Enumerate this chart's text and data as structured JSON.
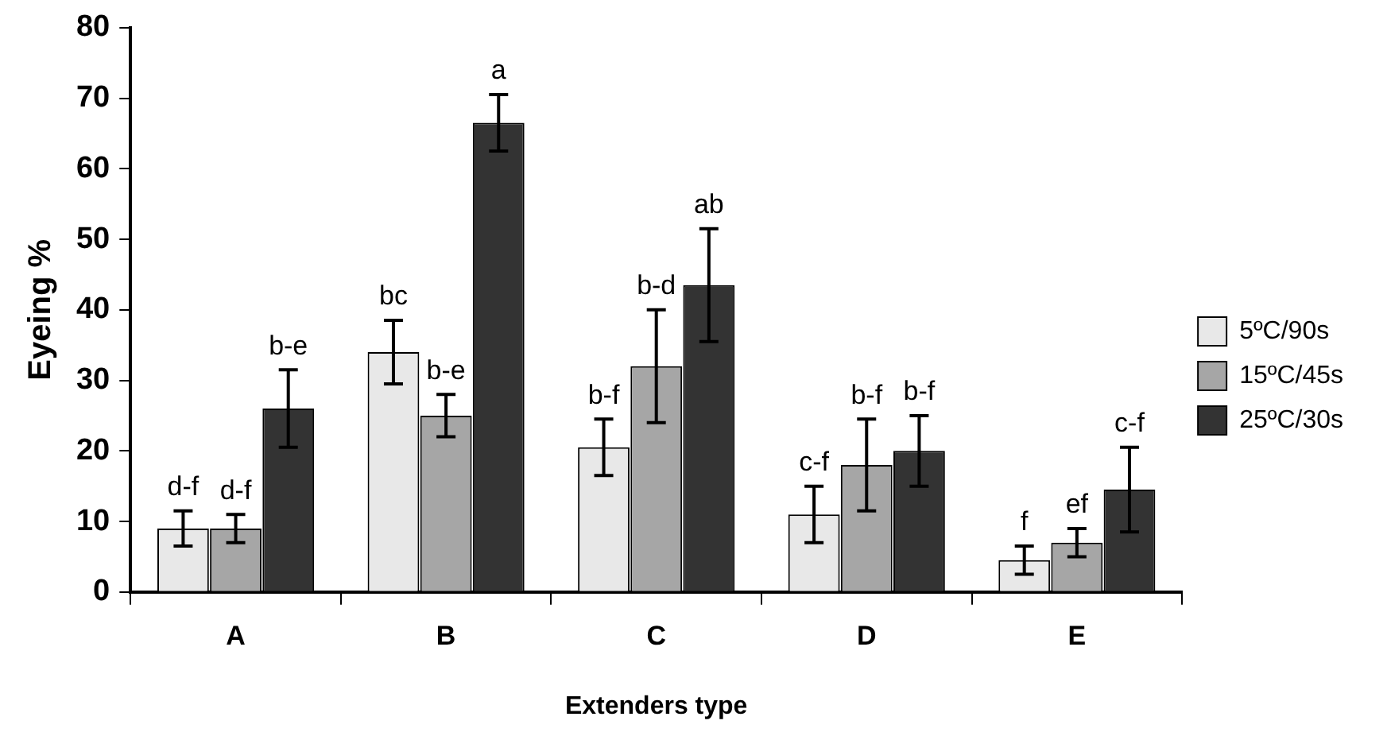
{
  "chart_data": {
    "type": "bar",
    "xlabel": "Extenders type",
    "ylabel": "Eyeing %",
    "categories": [
      "A",
      "B",
      "C",
      "D",
      "E"
    ],
    "ylim": [
      0,
      80
    ],
    "yticks": [
      0,
      10,
      20,
      30,
      40,
      50,
      60,
      70,
      80
    ],
    "grid": false,
    "legend": "right",
    "series": [
      {
        "name": "5ºC/90s",
        "color": "#e8e8e8",
        "values": [
          9,
          34,
          20.5,
          11,
          4.5
        ],
        "errors": [
          2.5,
          4.5,
          4,
          4,
          2
        ],
        "value_labels": [
          "d-f",
          "bc",
          "b-f",
          "c-f",
          "f"
        ]
      },
      {
        "name": "15ºC/45s",
        "color": "#a6a6a6",
        "values": [
          9,
          25,
          32,
          18,
          7
        ],
        "errors": [
          2,
          3,
          8,
          6.5,
          2
        ],
        "value_labels": [
          "d-f",
          "b-e",
          "b-d",
          "b-f",
          "ef"
        ]
      },
      {
        "name": "25ºC/30s",
        "color": "#333333",
        "values": [
          26,
          66.5,
          43.5,
          20,
          14.5
        ],
        "errors": [
          5.5,
          4,
          8,
          5,
          6
        ],
        "value_labels": [
          "b-e",
          "a",
          "ab",
          "b-f",
          "c-f"
        ]
      }
    ]
  }
}
